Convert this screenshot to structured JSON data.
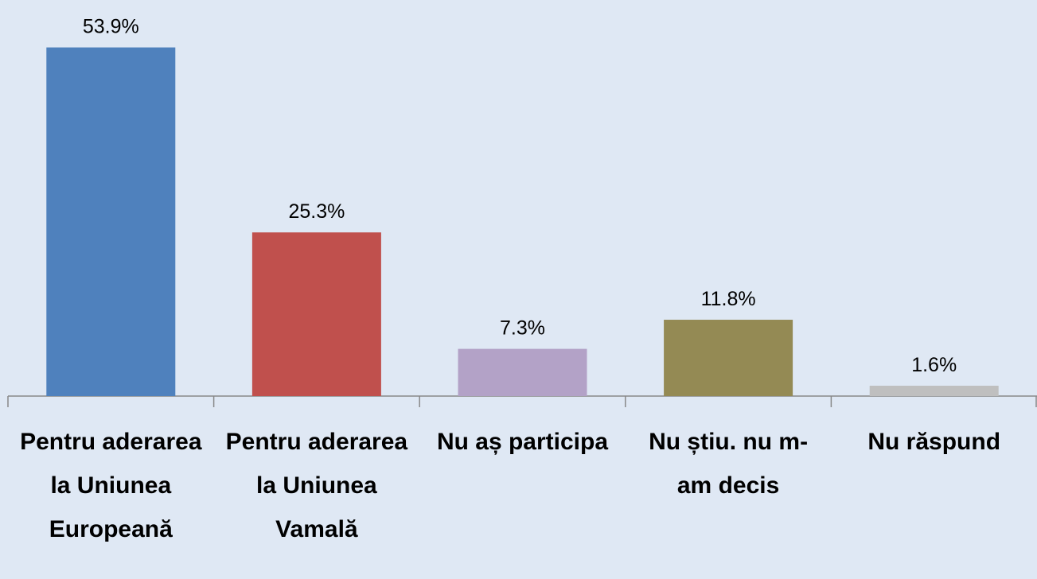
{
  "chart_data": {
    "type": "bar",
    "categories": [
      "Pentru aderarea la Uniunea Europeană",
      "Pentru aderarea la Uniunea Vamală",
      "Nu aș participa",
      "Nu știu. nu m-am decis",
      "Nu răspund"
    ],
    "values": [
      53.9,
      25.3,
      7.3,
      11.8,
      1.6
    ],
    "value_labels": [
      "53.9%",
      "25.3%",
      "7.3%",
      "11.8%",
      "1.6%"
    ],
    "colors": [
      "#4f81bd",
      "#c0504d",
      "#b3a2c7",
      "#948a54",
      "#bfbfbf"
    ],
    "ylim": [
      0,
      60
    ]
  }
}
